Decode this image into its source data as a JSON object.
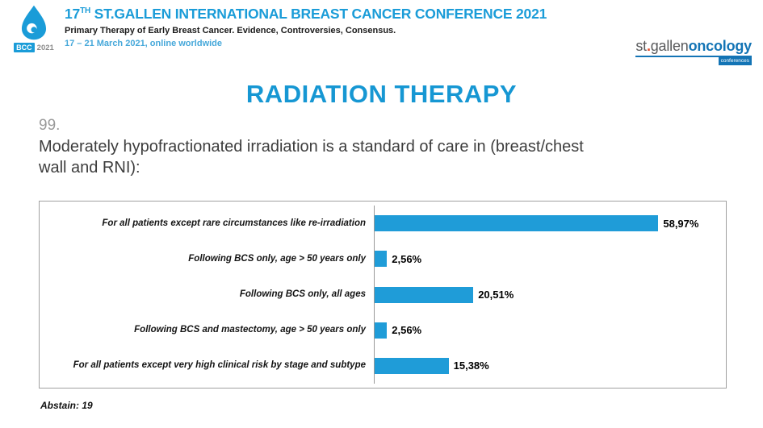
{
  "header": {
    "logo": {
      "badge": "BCC",
      "year": "2021"
    },
    "title_num": "17",
    "title_sup": "TH",
    "title_rest": " ST.GALLEN INTERNATIONAL BREAST CANCER CONFERENCE 2021",
    "subtitle": "Primary Therapy of Early Breast Cancer. Evidence, Controversies, Consensus.",
    "dates": "17 – 21 March 2021, online worldwide",
    "brand": {
      "st": "st",
      "dot": ".",
      "gallen": "gallen",
      "oncology": "oncology",
      "conferences": "conferences"
    }
  },
  "slide": {
    "title": "RADIATION THERAPY",
    "question_number": "99.",
    "question_line1": "Moderately hypofractionated irradiation is a standard of care in (breast/chest",
    "question_line2": "wall and RNI):",
    "abstain": "Abstain: 19"
  },
  "chart_data": {
    "type": "bar",
    "orientation": "horizontal",
    "title": "",
    "xlabel": "",
    "ylabel": "",
    "categories": [
      "For all patients except rare circumstances like re-irradiation",
      "Following BCS only, age > 50 years only",
      "Following BCS only, all ages",
      "Following BCS and mastectomy, age > 50 years only",
      "For all patients except very high clinical risk by stage and subtype"
    ],
    "values": [
      58.97,
      2.56,
      20.51,
      2.56,
      15.38
    ],
    "value_labels": [
      "58,97%",
      "2,56%",
      "20,51%",
      "2,56%",
      "15,38%"
    ],
    "xlim": [
      0,
      72
    ],
    "grid": "off",
    "legend": "none",
    "bar_color": "#1f9cd8"
  },
  "colors": {
    "accent_blue": "#1a9cd8",
    "brand_blue": "#1374b5",
    "bar_blue": "#1f9cd8"
  }
}
